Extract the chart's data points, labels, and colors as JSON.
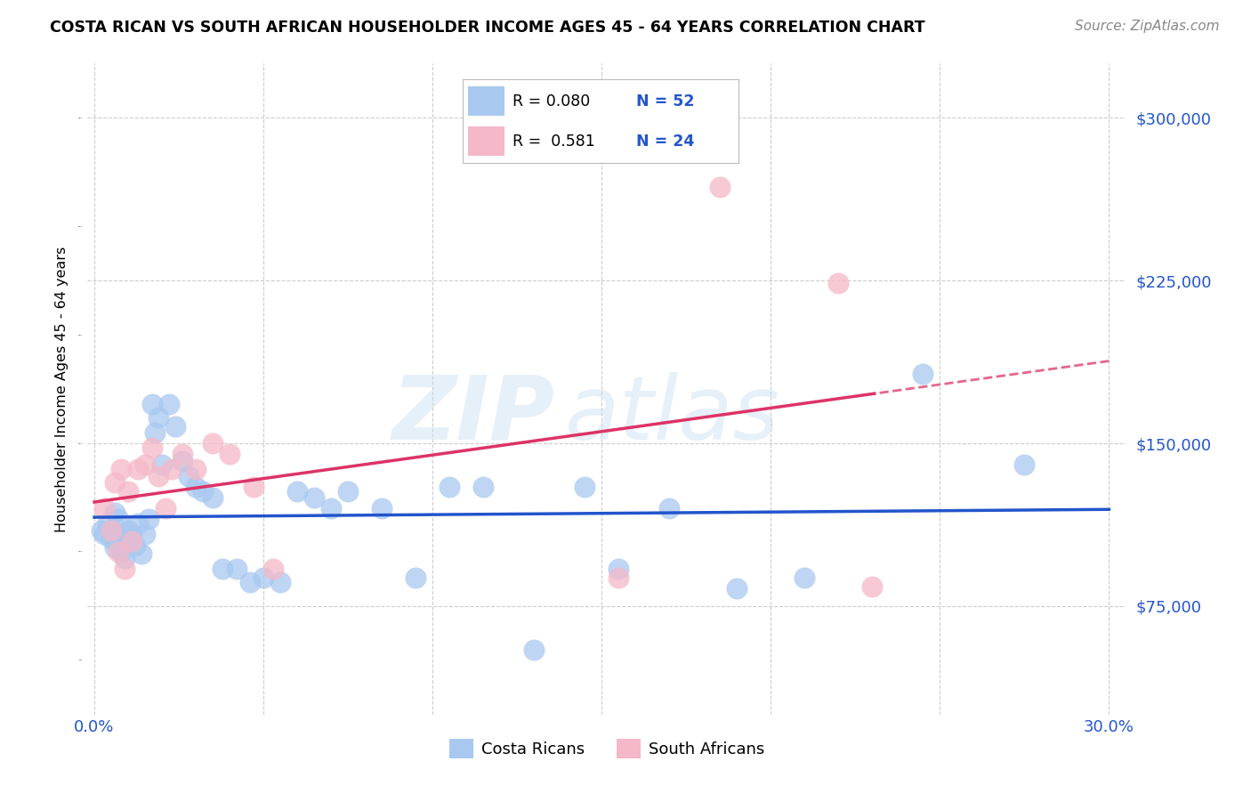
{
  "title": "COSTA RICAN VS SOUTH AFRICAN HOUSEHOLDER INCOME AGES 45 - 64 YEARS CORRELATION CHART",
  "source": "Source: ZipAtlas.com",
  "ylabel": "Householder Income Ages 45 - 64 years",
  "xlim": [
    -0.002,
    0.305
  ],
  "ylim": [
    25000,
    325000
  ],
  "yticks": [
    75000,
    150000,
    225000,
    300000
  ],
  "ytick_labels": [
    "$75,000",
    "$150,000",
    "$225,000",
    "$300,000"
  ],
  "xtick_vals": [
    0.0,
    0.05,
    0.1,
    0.15,
    0.2,
    0.25,
    0.3
  ],
  "xtick_labels": [
    "0.0%",
    "",
    "",
    "",
    "",
    "",
    "30.0%"
  ],
  "background_color": "#ffffff",
  "grid_color": "#cccccc",
  "watermark_zip": "ZIP",
  "watermark_atlas": "atlas",
  "blue_color": "#A8C8F0",
  "pink_color": "#F5B8C8",
  "blue_line_color": "#2255CC",
  "pink_line_color": "#DD3366",
  "R_blue": 0.08,
  "N_blue": 52,
  "R_pink": 0.581,
  "N_pink": 24,
  "legend_label_blue": "Costa Ricans",
  "legend_label_pink": "South Africans",
  "costa_rican_x": [
    0.002,
    0.003,
    0.004,
    0.005,
    0.006,
    0.006,
    0.007,
    0.007,
    0.008,
    0.008,
    0.009,
    0.009,
    0.01,
    0.01,
    0.011,
    0.012,
    0.013,
    0.014,
    0.015,
    0.016,
    0.017,
    0.018,
    0.019,
    0.02,
    0.022,
    0.024,
    0.026,
    0.028,
    0.03,
    0.032,
    0.035,
    0.038,
    0.042,
    0.046,
    0.05,
    0.055,
    0.06,
    0.065,
    0.07,
    0.075,
    0.085,
    0.095,
    0.105,
    0.115,
    0.13,
    0.145,
    0.155,
    0.17,
    0.19,
    0.21,
    0.245,
    0.275
  ],
  "costa_rican_y": [
    110000,
    108000,
    113000,
    106000,
    118000,
    102000,
    115000,
    108000,
    107000,
    100000,
    105000,
    97000,
    110000,
    104000,
    108000,
    103000,
    113000,
    99000,
    108000,
    115000,
    168000,
    155000,
    162000,
    140000,
    168000,
    158000,
    142000,
    135000,
    130000,
    128000,
    125000,
    92000,
    92000,
    86000,
    88000,
    86000,
    128000,
    125000,
    120000,
    128000,
    120000,
    88000,
    130000,
    130000,
    55000,
    130000,
    92000,
    120000,
    83000,
    88000,
    182000,
    140000
  ],
  "south_african_x": [
    0.003,
    0.005,
    0.006,
    0.007,
    0.008,
    0.009,
    0.01,
    0.011,
    0.013,
    0.015,
    0.017,
    0.019,
    0.021,
    0.023,
    0.026,
    0.03,
    0.035,
    0.04,
    0.047,
    0.053,
    0.155,
    0.185,
    0.22,
    0.23
  ],
  "south_african_y": [
    120000,
    110000,
    132000,
    100000,
    138000,
    92000,
    128000,
    105000,
    138000,
    140000,
    148000,
    135000,
    120000,
    138000,
    145000,
    138000,
    150000,
    145000,
    130000,
    92000,
    88000,
    268000,
    224000,
    84000
  ]
}
